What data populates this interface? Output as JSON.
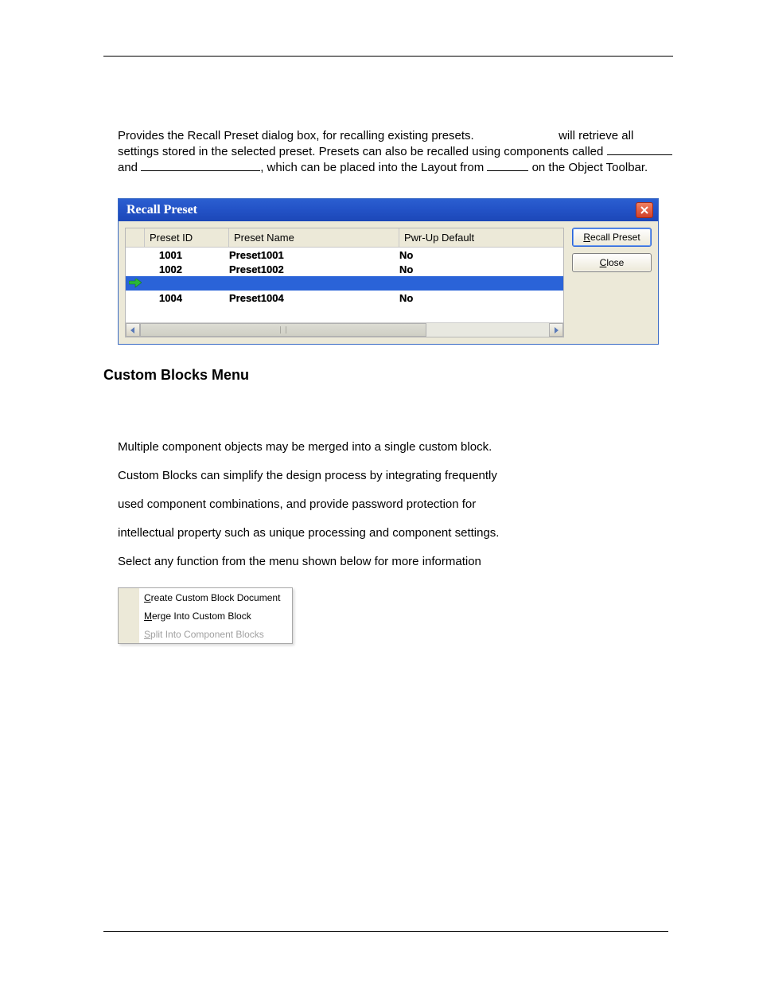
{
  "intro": {
    "t1": "Provides the Recall Preset dialog box, for recalling existing presets.",
    "t2": "will retrieve",
    "t3": "all settings stored in the selected preset. Presets can also be recalled using components called",
    "t4": "and",
    "t5": ", which can be placed into the Layout from",
    "t6": "on the Object Toolbar."
  },
  "dialog": {
    "title": "Recall Preset",
    "columns": {
      "id": "Preset ID",
      "name": "Preset Name",
      "pwr": "Pwr-Up Default"
    },
    "rows": [
      {
        "id": "1001",
        "name": "Preset1001",
        "pwr": "No",
        "selected": false
      },
      {
        "id": "1002",
        "name": "Preset1002",
        "pwr": "No",
        "selected": false
      },
      {
        "id": "",
        "name": "",
        "pwr": "",
        "selected": true
      },
      {
        "id": "1004",
        "name": "Preset1004",
        "pwr": "No",
        "selected": false
      }
    ],
    "buttons": {
      "recall": "Recall Preset",
      "close": "Close"
    },
    "col_widths": {
      "arrow": 24,
      "id": 106,
      "name": 214,
      "pwr": 190
    },
    "colors": {
      "titlebar_grad_top": "#2b5fd0",
      "titlebar_grad_bot": "#1c47b8",
      "body_bg": "#ece9d8",
      "selected_bg": "#2a63d8",
      "close_bg": "#d0402a"
    }
  },
  "section": {
    "heading": "Custom Blocks Menu",
    "lines": [
      "Multiple component objects may be merged into a single custom block.",
      "Custom Blocks can simplify the design process by integrating frequently",
      "used component combinations, and provide password protection for",
      "intellectual property such as unique processing and component settings.",
      "Select any function from the menu shown below for more information"
    ]
  },
  "menu": {
    "items": [
      {
        "label": "Create Custom Block Document",
        "accel": "C",
        "enabled": true
      },
      {
        "label": "Merge Into Custom Block",
        "accel": "M",
        "enabled": true
      },
      {
        "label": "Split Into Component Blocks",
        "accel": "S",
        "enabled": false
      }
    ]
  }
}
